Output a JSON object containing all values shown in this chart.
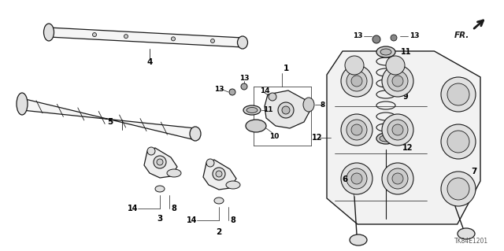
{
  "bg_color": "#ffffff",
  "line_color": "#1a1a1a",
  "text_color": "#000000",
  "fig_width": 6.4,
  "fig_height": 3.19,
  "dpi": 100,
  "watermark": "TK84E1201"
}
